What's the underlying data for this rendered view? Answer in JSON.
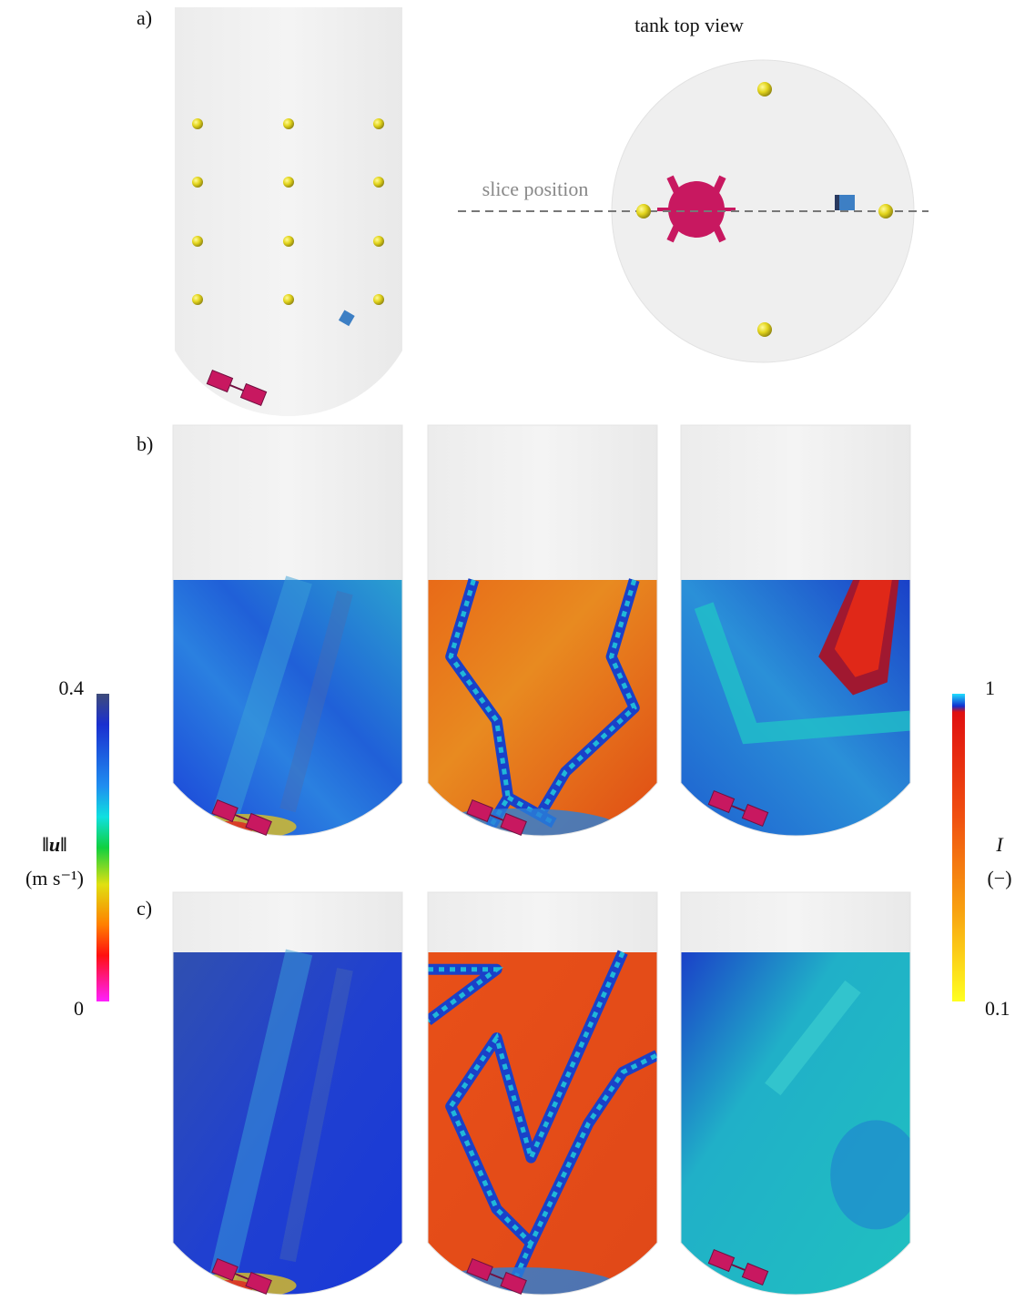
{
  "panels": {
    "a": {
      "label": "a)",
      "top_view_title": "tank top view",
      "slice_label": "slice position"
    },
    "b": {
      "label": "b)"
    },
    "c": {
      "label": "c)"
    }
  },
  "colorbars": {
    "velocity": {
      "max": "0.4",
      "min": "0",
      "symbol": "‖u‖",
      "unit": "(m s⁻¹)"
    },
    "index": {
      "max": "1",
      "min": "0.1",
      "symbol": "I",
      "unit": "(−)"
    }
  }
}
